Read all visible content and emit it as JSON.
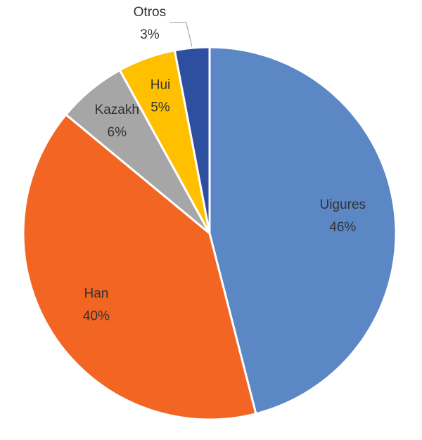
{
  "chart_data": {
    "type": "pie",
    "categories": [
      "Uigures",
      "Han",
      "Kazakh",
      "Hui",
      "Otros"
    ],
    "values": [
      46,
      40,
      6,
      5,
      3
    ],
    "value_labels": [
      "46%",
      "40%",
      "6%",
      "5%",
      "3%"
    ],
    "colors": [
      "#5b87c5",
      "#f26522",
      "#a6a6a6",
      "#ffc000",
      "#2e4ea0"
    ]
  }
}
